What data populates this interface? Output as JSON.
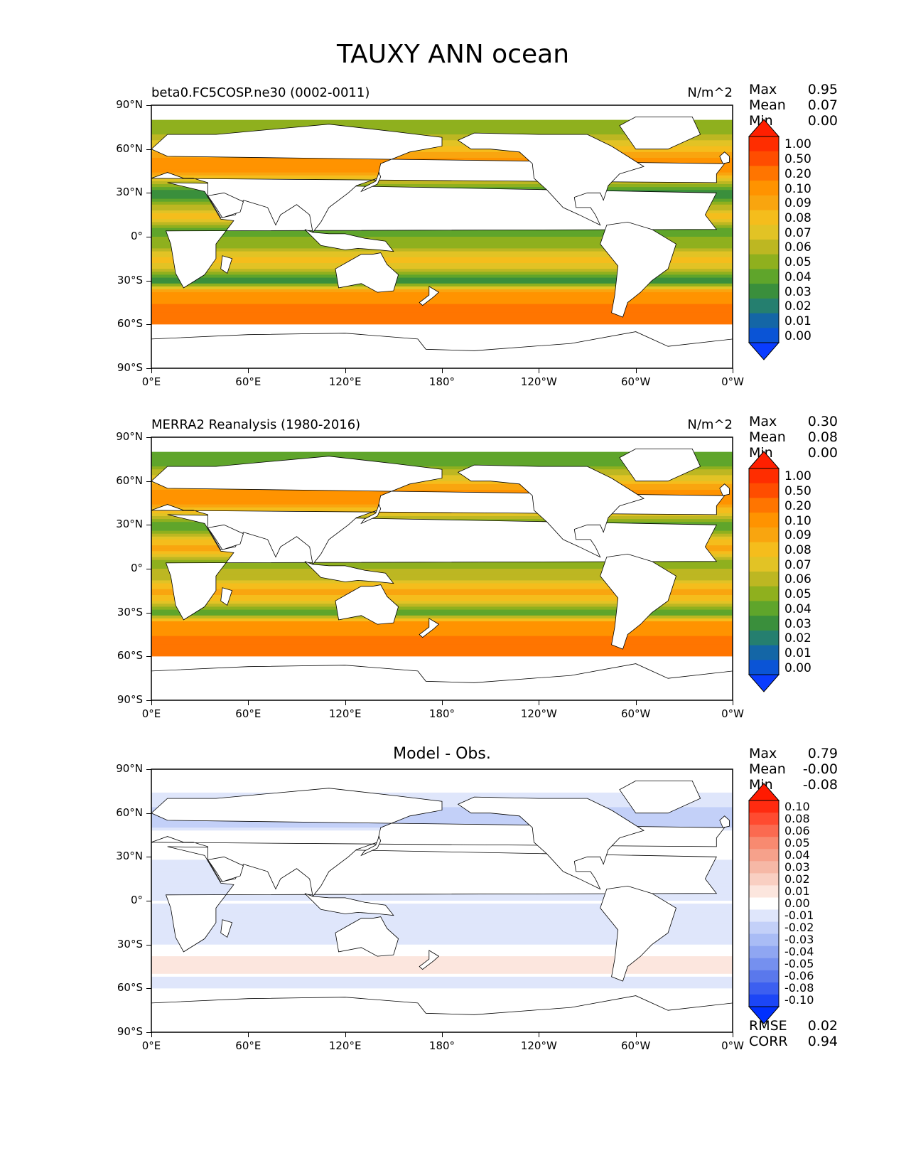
{
  "title": "TAUXY ANN ocean",
  "panels": [
    {
      "left_label": "beta0.FC5COSP.ne30 (0002-0011)",
      "right_label": "N/m^2",
      "center_label": "",
      "stats": [
        {
          "label": "Max",
          "value": "0.95"
        },
        {
          "label": "Mean",
          "value": "0.07"
        },
        {
          "label": "Min",
          "value": "0.00"
        }
      ]
    },
    {
      "left_label": "MERRA2 Reanalysis (1980-2016)",
      "right_label": "N/m^2",
      "center_label": "",
      "stats": [
        {
          "label": "Max",
          "value": "0.30"
        },
        {
          "label": "Mean",
          "value": "0.08"
        },
        {
          "label": "Min",
          "value": "0.00"
        }
      ]
    },
    {
      "left_label": "",
      "right_label": "",
      "center_label": "Model - Obs.",
      "stats": [
        {
          "label": "Max",
          "value": "0.79"
        },
        {
          "label": "Mean",
          "value": "-0.00"
        },
        {
          "label": "Min",
          "value": "-0.08"
        }
      ],
      "extra_stats": [
        {
          "label": "RMSE",
          "value": "0.02"
        },
        {
          "label": "CORR",
          "value": "0.94"
        }
      ]
    }
  ],
  "y_ticks": [
    "90°N",
    "60°N",
    "30°N",
    "0°",
    "30°S",
    "60°S",
    "90°S"
  ],
  "x_ticks": [
    "0°E",
    "60°E",
    "120°E",
    "180°",
    "120°W",
    "60°W",
    "0°W"
  ],
  "colorbar_main": {
    "labels": [
      "1.00",
      "0.50",
      "0.20",
      "0.10",
      "0.09",
      "0.08",
      "0.07",
      "0.06",
      "0.05",
      "0.04",
      "0.03",
      "0.02",
      "0.01",
      "0.00"
    ],
    "colors": [
      "#ff2d00",
      "#ff4d00",
      "#ff7500",
      "#ff9300",
      "#f9a50f",
      "#f5bd1c",
      "#e2c325",
      "#bdb722",
      "#8fb01e",
      "#5fa52b",
      "#3a8f3c",
      "#257f6f",
      "#1466a6",
      "#0a54d6"
    ],
    "extend_top": "#ff1f00",
    "extend_bottom": "#0a3cff"
  },
  "colorbar_diff": {
    "labels": [
      "0.10",
      "0.08",
      "0.06",
      "0.05",
      "0.04",
      "0.03",
      "0.02",
      "0.01",
      "0.00",
      "-0.01",
      "-0.02",
      "-0.03",
      "-0.04",
      "-0.05",
      "-0.06",
      "-0.08",
      "-0.10"
    ],
    "colors": [
      "#ff2b10",
      "#ff4b30",
      "#fb6a50",
      "#f88a70",
      "#f6a18b",
      "#f6b8a6",
      "#f9cfc2",
      "#fce6de",
      "#ffffff",
      "#dfe6fb",
      "#c3d0f8",
      "#a9bcf5",
      "#8fa6f2",
      "#7590ef",
      "#5a78ec",
      "#3c5ff0",
      "#1c46f6"
    ],
    "extend_top": "#ff1a00",
    "extend_bottom": "#0030ff"
  },
  "chart_data": [
    {
      "type": "heatmap",
      "title": "beta0.FC5COSP.ne30 (0002-0011)",
      "units": "N/m^2",
      "projection": "PlateCarree",
      "xlim": [
        0,
        360
      ],
      "ylim": [
        -90,
        90
      ],
      "x_ticks": [
        "0°E",
        "60°E",
        "120°E",
        "180°",
        "120°W",
        "60°W",
        "0°W"
      ],
      "y_ticks": [
        "90°N",
        "60°N",
        "30°N",
        "0°",
        "30°S",
        "60°S",
        "90°S"
      ],
      "levels": [
        0.0,
        0.01,
        0.02,
        0.03,
        0.04,
        0.05,
        0.06,
        0.07,
        0.08,
        0.09,
        0.1,
        0.2,
        0.5,
        1.0
      ],
      "stats": {
        "max": 0.95,
        "mean": 0.07,
        "min": 0.0
      },
      "zonal_profile": {
        "lat": [
          75,
          55,
          45,
          30,
          15,
          5,
          0,
          -5,
          -15,
          -30,
          -45,
          -55
        ],
        "value": [
          0.05,
          0.1,
          0.1,
          0.03,
          0.09,
          0.04,
          0.05,
          0.05,
          0.09,
          0.03,
          0.2,
          0.2
        ]
      }
    },
    {
      "type": "heatmap",
      "title": "MERRA2 Reanalysis (1980-2016)",
      "units": "N/m^2",
      "projection": "PlateCarree",
      "xlim": [
        0,
        360
      ],
      "ylim": [
        -90,
        90
      ],
      "x_ticks": [
        "0°E",
        "60°E",
        "120°E",
        "180°",
        "120°W",
        "60°W",
        "0°W"
      ],
      "y_ticks": [
        "90°N",
        "60°N",
        "30°N",
        "0°",
        "30°S",
        "60°S",
        "90°S"
      ],
      "levels": [
        0.0,
        0.01,
        0.02,
        0.03,
        0.04,
        0.05,
        0.06,
        0.07,
        0.08,
        0.09,
        0.1,
        0.2,
        0.5,
        1.0
      ],
      "stats": {
        "max": 0.3,
        "mean": 0.08,
        "min": 0.0
      },
      "zonal_profile": {
        "lat": [
          75,
          55,
          45,
          30,
          15,
          5,
          0,
          -5,
          -15,
          -30,
          -45,
          -55
        ],
        "value": [
          0.04,
          0.1,
          0.1,
          0.04,
          0.1,
          0.05,
          0.06,
          0.06,
          0.1,
          0.04,
          0.2,
          0.2
        ]
      }
    },
    {
      "type": "heatmap",
      "title": "Model - Obs.",
      "projection": "PlateCarree",
      "xlim": [
        0,
        360
      ],
      "ylim": [
        -90,
        90
      ],
      "x_ticks": [
        "0°E",
        "60°E",
        "120°E",
        "180°",
        "120°W",
        "60°W",
        "0°W"
      ],
      "y_ticks": [
        "90°N",
        "60°N",
        "30°N",
        "0°",
        "30°S",
        "60°S",
        "90°S"
      ],
      "levels": [
        -0.1,
        -0.08,
        -0.06,
        -0.05,
        -0.04,
        -0.03,
        -0.02,
        -0.01,
        0.0,
        0.01,
        0.02,
        0.03,
        0.04,
        0.05,
        0.06,
        0.08,
        0.1
      ],
      "stats": {
        "max": 0.79,
        "mean": -0.0,
        "min": -0.08,
        "rmse": 0.02,
        "corr": 0.94
      },
      "zonal_profile": {
        "lat": [
          75,
          55,
          45,
          30,
          15,
          5,
          0,
          -5,
          -15,
          -30,
          -45,
          -55
        ],
        "value": [
          0.0,
          -0.02,
          0.01,
          0.0,
          -0.01,
          -0.01,
          0.0,
          -0.01,
          -0.01,
          0.0,
          0.02,
          -0.01
        ]
      }
    }
  ]
}
